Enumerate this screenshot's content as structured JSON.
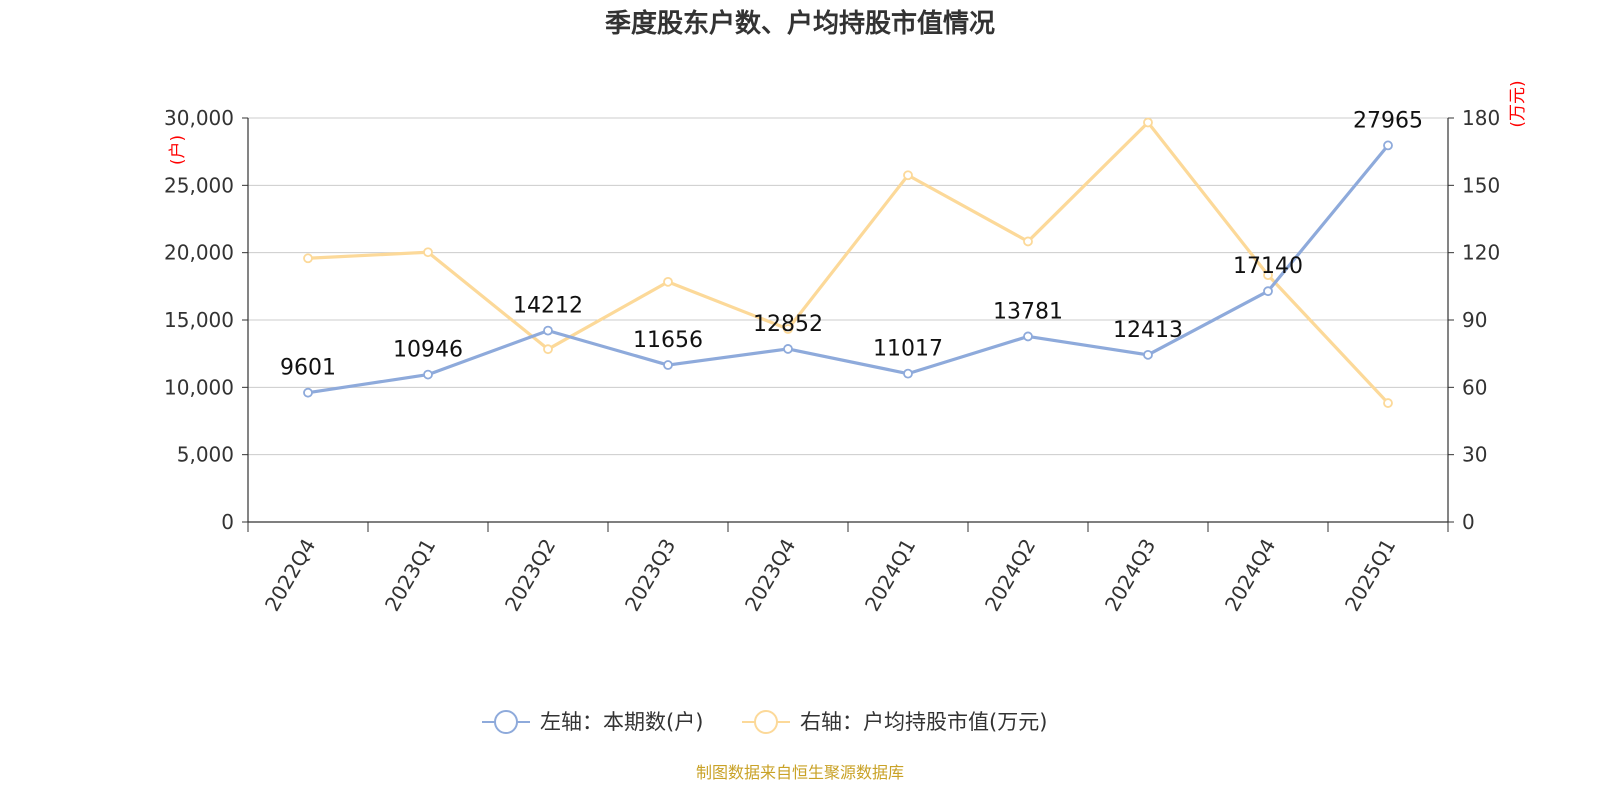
{
  "title": "季度股东户数、户均持股市值情况",
  "source": "制图数据来自恒生聚源数据库",
  "chart_data": {
    "type": "line",
    "title": "季度股东户数、户均持股市值情况",
    "categories": [
      "2022Q4",
      "2023Q1",
      "2023Q2",
      "2023Q3",
      "2023Q4",
      "2024Q1",
      "2024Q2",
      "2024Q3",
      "2024Q4",
      "2025Q1"
    ],
    "left_axis": {
      "unit_label": "(户)",
      "ylim": [
        0,
        30000
      ],
      "ticks": [
        "0",
        "5,000",
        "10,000",
        "15,000",
        "20,000",
        "25,000",
        "30,000"
      ]
    },
    "right_axis": {
      "unit_label": "(万元)",
      "ylim": [
        0,
        180
      ],
      "ticks": [
        "0",
        "30",
        "60",
        "90",
        "120",
        "150",
        "180"
      ]
    },
    "grid": true,
    "legend_position": "bottom",
    "series": [
      {
        "name": "左轴：本期数(户)",
        "axis": "left",
        "color": "#8eaadb",
        "values": [
          9601,
          10946,
          14212,
          11656,
          12852,
          11017,
          13781,
          12413,
          17140,
          27965
        ],
        "show_labels": true
      },
      {
        "name": "右轴：户均持股市值(万元)",
        "axis": "right",
        "color": "#fcd999",
        "values": [
          117.5,
          120.2,
          77.0,
          107.0,
          86.0,
          154.5,
          125.0,
          178.0,
          110.0,
          53.0
        ],
        "show_labels": false
      }
    ]
  }
}
